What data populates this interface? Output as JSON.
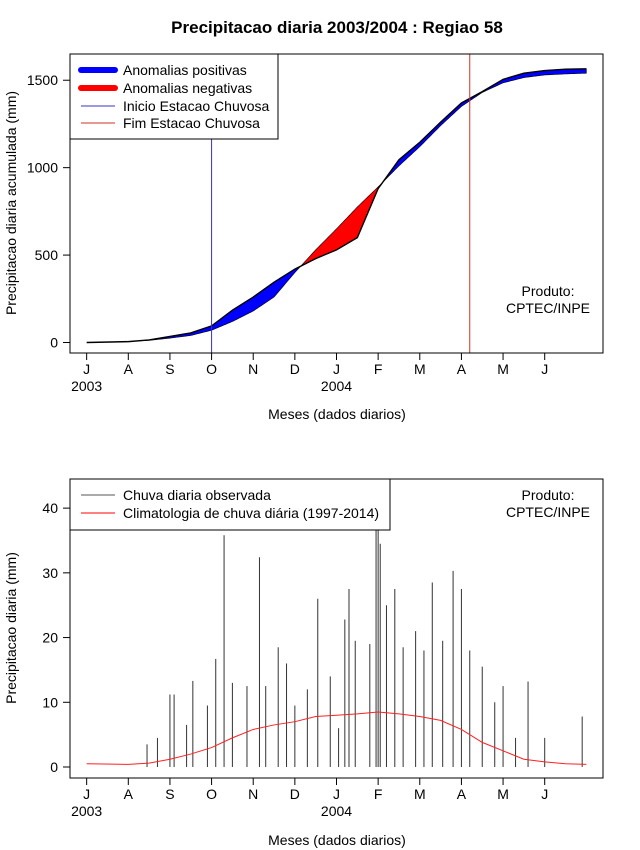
{
  "figure": {
    "title": "Precipitacao diaria 2003/2004 : Regiao 58"
  },
  "chart_data": [
    {
      "id": "cumulative",
      "type": "area",
      "title": "Precipitacao diaria 2003/2004 : Regiao 58",
      "xlabel": "Meses (dados diarios)",
      "ylabel": "Precipitacao diaria acumulada (mm)",
      "x_unit": "months since Jul 1 2003",
      "xlim": [
        -0.4,
        12.4
      ],
      "ylim": [
        -60,
        1650
      ],
      "month_ticks": [
        {
          "pos": 0,
          "label": "J"
        },
        {
          "pos": 1,
          "label": "A"
        },
        {
          "pos": 2,
          "label": "S"
        },
        {
          "pos": 3,
          "label": "O"
        },
        {
          "pos": 4,
          "label": "N"
        },
        {
          "pos": 5,
          "label": "D"
        },
        {
          "pos": 6,
          "label": "J"
        },
        {
          "pos": 7,
          "label": "F"
        },
        {
          "pos": 8,
          "label": "M"
        },
        {
          "pos": 9,
          "label": "A"
        },
        {
          "pos": 10,
          "label": "M"
        },
        {
          "pos": 11,
          "label": "J"
        }
      ],
      "year_labels": [
        {
          "pos": 0,
          "label": "2003"
        },
        {
          "pos": 6,
          "label": "2004"
        }
      ],
      "y_ticks": [
        0,
        500,
        1000,
        1500
      ],
      "observed_cumulative": {
        "x": [
          0,
          1,
          1.5,
          2,
          2.5,
          3,
          3.5,
          4,
          4.5,
          5,
          5.5,
          6,
          6.5,
          7,
          7.5,
          8,
          8.5,
          9,
          9.5,
          10,
          10.5,
          11,
          11.5,
          12
        ],
        "y": [
          0,
          5,
          15,
          35,
          55,
          95,
          185,
          260,
          345,
          420,
          480,
          530,
          600,
          880,
          1045,
          1145,
          1260,
          1370,
          1435,
          1505,
          1540,
          1555,
          1563,
          1565
        ]
      },
      "climatology_cumulative": {
        "x": [
          0,
          1,
          1.5,
          2,
          2.5,
          3,
          3.5,
          4,
          4.5,
          5,
          5.5,
          6,
          6.5,
          7,
          7.5,
          8,
          8.5,
          9,
          9.5,
          10,
          10.5,
          11,
          11.5,
          12
        ],
        "y": [
          0,
          6,
          12,
          25,
          40,
          70,
          120,
          180,
          260,
          400,
          530,
          650,
          775,
          890,
          1010,
          1120,
          1240,
          1350,
          1430,
          1485,
          1515,
          1530,
          1536,
          1540
        ]
      },
      "rainy_season_start": 3.0,
      "rainy_season_end": 9.2,
      "legend": {
        "position": "top-left",
        "entries": [
          {
            "label": "Anomalias positivas",
            "color": "#0000ff",
            "style": "thick"
          },
          {
            "label": "Anomalias negativas",
            "color": "#ff0000",
            "style": "thick"
          },
          {
            "label": "Inicio Estacao Chuvosa",
            "color": "#3333cc",
            "style": "thin"
          },
          {
            "label": "Fim Estacao Chuvosa",
            "color": "#d03020",
            "style": "thin"
          }
        ]
      },
      "credit": [
        "Produto:",
        "CPTEC/INPE"
      ],
      "colors": {
        "positive": "#0000ff",
        "negative": "#ff0000",
        "observed": "#000000",
        "start_line": "#3333cc",
        "end_line": "#d03020"
      }
    },
    {
      "id": "daily",
      "type": "bar",
      "xlabel": "Meses (dados diarios)",
      "ylabel": "Precipitacao diaria (mm)",
      "x_unit": "months since Jul 1 2003",
      "xlim": [
        -0.4,
        12.4
      ],
      "ylim": [
        -1.7,
        44.5
      ],
      "month_ticks": [
        {
          "pos": 0,
          "label": "J"
        },
        {
          "pos": 1,
          "label": "A"
        },
        {
          "pos": 2,
          "label": "S"
        },
        {
          "pos": 3,
          "label": "O"
        },
        {
          "pos": 4,
          "label": "N"
        },
        {
          "pos": 5,
          "label": "D"
        },
        {
          "pos": 6,
          "label": "J"
        },
        {
          "pos": 7,
          "label": "F"
        },
        {
          "pos": 8,
          "label": "M"
        },
        {
          "pos": 9,
          "label": "A"
        },
        {
          "pos": 10,
          "label": "M"
        },
        {
          "pos": 11,
          "label": "J"
        }
      ],
      "year_labels": [
        {
          "pos": 0,
          "label": "2003"
        },
        {
          "pos": 6,
          "label": "2004"
        }
      ],
      "y_ticks": [
        0,
        10,
        20,
        30,
        40
      ],
      "observed_daily_peaks": {
        "x": [
          1.45,
          1.7,
          2.0,
          2.1,
          2.4,
          2.55,
          2.9,
          3.1,
          3.3,
          3.5,
          3.85,
          4.15,
          4.3,
          4.6,
          4.8,
          5.0,
          5.3,
          5.55,
          5.85,
          6.05,
          6.2,
          6.3,
          6.45,
          6.8,
          6.95,
          7.0,
          7.05,
          7.2,
          7.4,
          7.6,
          7.9,
          8.1,
          8.3,
          8.55,
          8.8,
          9.0,
          9.2,
          9.5,
          9.8,
          10.0,
          10.3,
          10.6,
          11.0,
          11.9
        ],
        "y": [
          3.5,
          4.5,
          11.2,
          11.2,
          6.5,
          13.3,
          9.5,
          16.7,
          35.8,
          13.0,
          12.5,
          32.4,
          12.5,
          18.5,
          16.0,
          9.5,
          12.0,
          26.0,
          14.0,
          6.0,
          22.8,
          27.5,
          19.5,
          19.0,
          43.0,
          37.5,
          34.5,
          25.0,
          27.5,
          18.5,
          21.0,
          18.0,
          28.5,
          19.5,
          30.3,
          27.5,
          18.0,
          15.5,
          10.0,
          12.5,
          4.5,
          13.2,
          4.5,
          7.8
        ]
      },
      "climatology_daily_smoothed": {
        "x": [
          0,
          1,
          1.5,
          2,
          2.5,
          3,
          3.5,
          4,
          4.5,
          5,
          5.5,
          6,
          6.5,
          7,
          7.5,
          8,
          8.5,
          9,
          9.5,
          10,
          10.5,
          11,
          11.5,
          12
        ],
        "y": [
          0.5,
          0.4,
          0.6,
          1.2,
          2.0,
          3.0,
          4.5,
          5.8,
          6.5,
          7.0,
          7.8,
          8.0,
          8.2,
          8.5,
          8.2,
          7.8,
          7.2,
          5.8,
          3.8,
          2.5,
          1.2,
          0.8,
          0.5,
          0.4
        ]
      },
      "legend": {
        "position": "top-left",
        "entries": [
          {
            "label": "Chuva diaria observada",
            "color": "#555555",
            "style": "thin"
          },
          {
            "label": "Climatologia de chuva diária (1997-2014)",
            "color": "#ff0000",
            "style": "thin"
          }
        ]
      },
      "credit": [
        "Produto:",
        "CPTEC/INPE"
      ],
      "colors": {
        "observed": "#333333",
        "climatology": "#ff2020"
      }
    }
  ]
}
